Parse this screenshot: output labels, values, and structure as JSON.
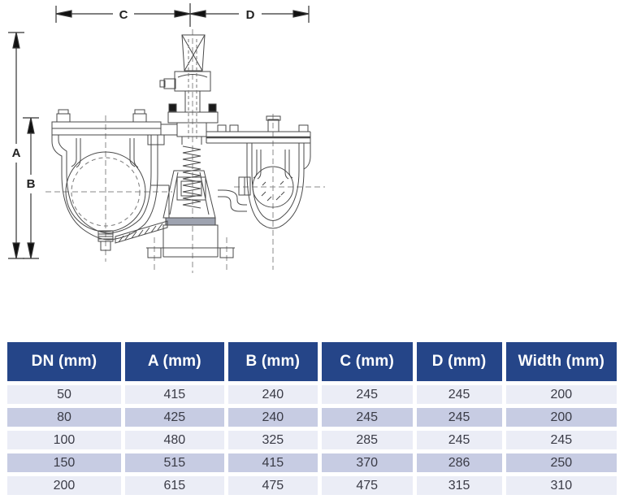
{
  "diagram": {
    "dimension_labels": {
      "a": "A",
      "b": "B",
      "c": "C",
      "d": "D"
    }
  },
  "table": {
    "headers": [
      "DN (mm)",
      "A (mm)",
      "B (mm)",
      "C (mm)",
      "D (mm)",
      "Width (mm)"
    ],
    "rows": [
      [
        "50",
        "415",
        "240",
        "245",
        "245",
        "200"
      ],
      [
        "80",
        "425",
        "240",
        "245",
        "245",
        "200"
      ],
      [
        "100",
        "480",
        "325",
        "285",
        "245",
        "245"
      ],
      [
        "150",
        "515",
        "415",
        "370",
        "286",
        "250"
      ],
      [
        "200",
        "615",
        "475",
        "475",
        "315",
        "310"
      ]
    ]
  },
  "colors": {
    "header_bg": "#254588",
    "row_light": "#ebedf6",
    "row_dark": "#c7cce3",
    "line": "#4a4a4a"
  }
}
